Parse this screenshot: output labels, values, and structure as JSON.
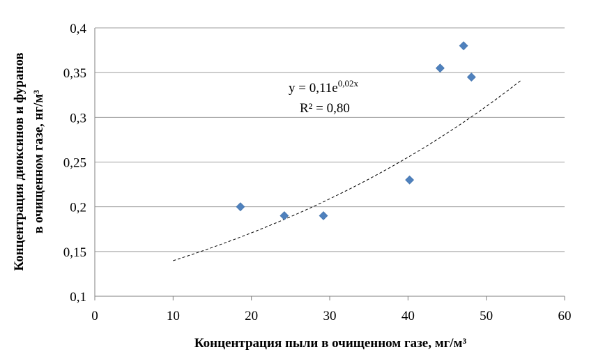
{
  "chart_data": {
    "type": "scatter",
    "xlabel": "Концентрация пыли в очищенном газе, мг/м³",
    "ylabel_line1": "Концентрация диоксинов и фуранов",
    "ylabel_line2": "в очищенном газе,  нг/м³",
    "xlim": [
      0,
      60
    ],
    "ylim": [
      0.1,
      0.4
    ],
    "x_ticks": [
      0,
      10,
      20,
      30,
      40,
      50,
      60
    ],
    "x_tick_labels": [
      "0",
      "10",
      "20",
      "30",
      "40",
      "50",
      "60"
    ],
    "y_ticks": [
      0.1,
      0.15,
      0.2,
      0.25,
      0.3,
      0.35,
      0.4
    ],
    "y_tick_labels": [
      "0,1",
      "0,15",
      "0,2",
      "0,25",
      "0,3",
      "0,35",
      "0,4"
    ],
    "grid": "horizontal",
    "series": [
      {
        "marker": "diamond",
        "color": "#4f81bd",
        "points": [
          {
            "x": 18.6,
            "y": 0.2
          },
          {
            "x": 24.2,
            "y": 0.19
          },
          {
            "x": 29.2,
            "y": 0.19
          },
          {
            "x": 40.2,
            "y": 0.23
          },
          {
            "x": 44.1,
            "y": 0.355
          },
          {
            "x": 47.1,
            "y": 0.38
          },
          {
            "x": 48.1,
            "y": 0.345
          }
        ]
      }
    ],
    "trendline": {
      "type": "exponential",
      "a": 0.1143,
      "b": 0.0201,
      "x_range": [
        10,
        54.4
      ],
      "equation_base": "y = 0,11e",
      "equation_exp": "0,02x",
      "r2_label": "R² = 0,80"
    }
  }
}
